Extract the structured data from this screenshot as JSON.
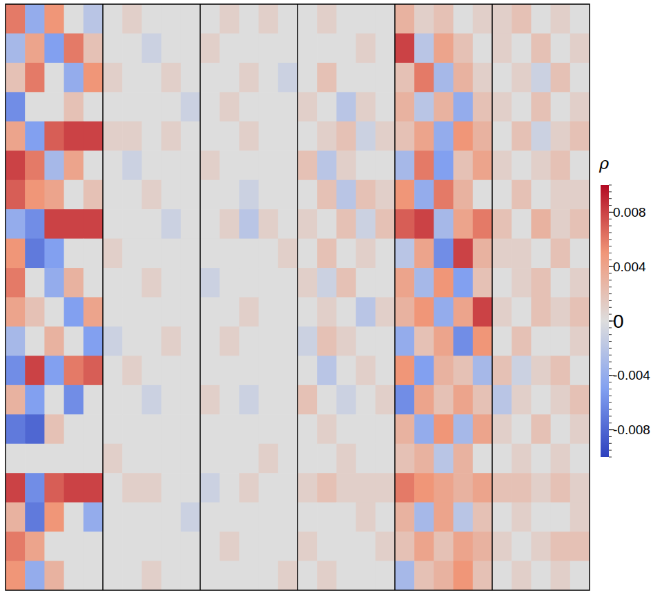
{
  "chart_data": {
    "type": "heatmap",
    "tick_labels": false,
    "colorbar": {
      "label": "ρ",
      "range": [
        -0.01,
        0.01
      ],
      "ticks": [
        -0.008,
        -0.004,
        0,
        0.004,
        0.008
      ]
    },
    "panels": [
      {
        "cells": [
          [
            0.006,
            -0.004,
            0.005,
            0,
            -0.002
          ],
          [
            -0.003,
            0.004,
            -0.005,
            0.006,
            0.002
          ],
          [
            0.002,
            0.006,
            0,
            -0.004,
            0.005
          ],
          [
            -0.006,
            0,
            0,
            0.002,
            0
          ],
          [
            0.004,
            -0.005,
            0.007,
            0.008,
            0.008
          ],
          [
            0.008,
            0.006,
            -0.003,
            0.004,
            0
          ],
          [
            0.007,
            0.005,
            0.004,
            0,
            0.002
          ],
          [
            -0.004,
            -0.006,
            0.008,
            0.008,
            0.008
          ],
          [
            0.005,
            -0.007,
            -0.005,
            0,
            0
          ],
          [
            0.006,
            0,
            -0.004,
            0.003,
            0
          ],
          [
            0.004,
            0.002,
            0,
            -0.005,
            0.004
          ],
          [
            -0.003,
            0,
            0.003,
            0,
            -0.005
          ],
          [
            -0.006,
            0.008,
            -0.005,
            0.006,
            0.007
          ],
          [
            0.003,
            -0.005,
            0,
            -0.006,
            0
          ],
          [
            -0.007,
            -0.008,
            0.002,
            0,
            0
          ],
          [
            0,
            0,
            0,
            0,
            0
          ],
          [
            0.008,
            -0.006,
            0.007,
            0.008,
            0.008
          ],
          [
            0.003,
            -0.007,
            0.005,
            0,
            -0.004
          ],
          [
            0.006,
            0.004,
            0,
            0,
            0
          ],
          [
            0.005,
            -0.004,
            0.003,
            0,
            0
          ]
        ]
      },
      {
        "cells": [
          [
            0,
            0.001,
            0,
            0,
            0
          ],
          [
            0,
            0,
            -0.001,
            0,
            0
          ],
          [
            0.001,
            0,
            0,
            0.001,
            0
          ],
          [
            0,
            0,
            0,
            0,
            -0.001
          ],
          [
            0.001,
            0.001,
            0,
            0.001,
            0
          ],
          [
            0,
            -0.001,
            0,
            0,
            0
          ],
          [
            0,
            0,
            0.001,
            0,
            0
          ],
          [
            0,
            0,
            0,
            -0.001,
            0
          ],
          [
            0.001,
            0,
            0,
            0,
            0
          ],
          [
            0,
            0,
            0.001,
            0,
            0
          ],
          [
            0,
            0,
            0,
            0,
            0
          ],
          [
            -0.001,
            0,
            0,
            0.001,
            0
          ],
          [
            0,
            0.001,
            0,
            0,
            0
          ],
          [
            0,
            0,
            -0.001,
            0,
            0
          ],
          [
            0,
            0,
            0,
            0,
            0
          ],
          [
            0.001,
            0,
            0,
            0,
            0
          ],
          [
            0,
            0.001,
            0.001,
            0,
            0
          ],
          [
            0,
            0,
            0,
            0,
            -0.001
          ],
          [
            0,
            0,
            0,
            0,
            0
          ],
          [
            0,
            0,
            0.001,
            0,
            0
          ]
        ]
      },
      {
        "cells": [
          [
            0,
            0.001,
            0,
            0.001,
            0
          ],
          [
            0.001,
            0,
            0,
            0,
            0
          ],
          [
            0,
            0,
            0.001,
            0,
            -0.001
          ],
          [
            0,
            0.001,
            0,
            0,
            0
          ],
          [
            0,
            0,
            0.001,
            0,
            0
          ],
          [
            0.001,
            0,
            0,
            0,
            0
          ],
          [
            0,
            0,
            -0.001,
            0,
            0
          ],
          [
            0,
            0.001,
            -0.002,
            0.001,
            0
          ],
          [
            0,
            0,
            0,
            0,
            0.001
          ],
          [
            -0.001,
            0,
            0,
            0,
            0
          ],
          [
            0,
            0,
            0.001,
            0,
            0
          ],
          [
            0,
            0.001,
            0,
            0,
            0
          ],
          [
            0,
            0,
            0,
            0,
            0
          ],
          [
            0.001,
            0,
            -0.001,
            0,
            0
          ],
          [
            0,
            0,
            0,
            0,
            0
          ],
          [
            0,
            0,
            0,
            0.001,
            0
          ],
          [
            -0.001,
            0,
            0.001,
            0,
            0
          ],
          [
            0,
            0,
            0,
            0,
            0
          ],
          [
            0,
            0.001,
            0,
            0,
            0
          ],
          [
            0,
            0,
            0,
            0,
            0.001
          ]
        ]
      },
      {
        "cells": [
          [
            0,
            0.001,
            0,
            0,
            0
          ],
          [
            0,
            0,
            0,
            0.001,
            0
          ],
          [
            0,
            0.002,
            0,
            0,
            0
          ],
          [
            0.001,
            0,
            -0.002,
            0.001,
            0
          ],
          [
            0,
            0.001,
            0.002,
            -0.001,
            0.001
          ],
          [
            0.002,
            -0.002,
            0.001,
            0,
            0
          ],
          [
            0,
            0.002,
            -0.002,
            0.002,
            0.001
          ],
          [
            0.001,
            0,
            0.002,
            -0.001,
            0.002
          ],
          [
            0,
            0.002,
            0,
            0.001,
            0
          ],
          [
            0.001,
            -0.001,
            0.002,
            0,
            0
          ],
          [
            0,
            0.001,
            0,
            -0.002,
            0.001
          ],
          [
            -0.001,
            0.002,
            0.001,
            0,
            0
          ],
          [
            0,
            -0.002,
            0,
            0.001,
            0
          ],
          [
            0.002,
            0,
            -0.001,
            0,
            0.001
          ],
          [
            0,
            0.001,
            0,
            0,
            0
          ],
          [
            0,
            0,
            0.001,
            0,
            0
          ],
          [
            0.001,
            0.002,
            0.001,
            0.001,
            0.001
          ],
          [
            0,
            0,
            0,
            0.001,
            0
          ],
          [
            0.001,
            0,
            0,
            0,
            0.001
          ],
          [
            0,
            0.001,
            0,
            0,
            0
          ]
        ]
      },
      {
        "cells": [
          [
            0.003,
            0.001,
            0.002,
            0,
            0.001
          ],
          [
            0.008,
            -0.002,
            0.004,
            0.002,
            0
          ],
          [
            0.002,
            0.006,
            -0.003,
            0.003,
            0.001
          ],
          [
            0.003,
            -0.002,
            0.003,
            -0.004,
            0.002
          ],
          [
            0.002,
            0.004,
            -0.004,
            0.005,
            0.003
          ],
          [
            -0.003,
            0.006,
            -0.005,
            0.002,
            0.004
          ],
          [
            0.005,
            -0.004,
            0.006,
            0.003,
            0
          ],
          [
            0.007,
            0.008,
            -0.003,
            0.004,
            0.006
          ],
          [
            -0.002,
            0.004,
            -0.006,
            0.008,
            0.003
          ],
          [
            0.004,
            -0.003,
            0.005,
            -0.005,
            0.002
          ],
          [
            0.003,
            0.005,
            -0.004,
            0.004,
            0.008
          ],
          [
            -0.004,
            0.002,
            0.004,
            -0.006,
            0.005
          ],
          [
            0.005,
            -0.005,
            0.003,
            0.002,
            -0.003
          ],
          [
            -0.006,
            0.004,
            0.002,
            0.004,
            0.002
          ],
          [
            0.003,
            -0.004,
            0.005,
            -0.003,
            0.004
          ],
          [
            0.002,
            0.003,
            -0.002,
            0.003,
            0
          ],
          [
            0.006,
            0.005,
            0.004,
            0.003,
            0.004
          ],
          [
            0.003,
            -0.003,
            0.004,
            -0.002,
            0.002
          ],
          [
            0.002,
            0.004,
            0.002,
            0.004,
            0.003
          ],
          [
            -0.003,
            0.002,
            0.003,
            0.005,
            0.002
          ]
        ]
      },
      {
        "cells": [
          [
            0.001,
            0.002,
            0,
            0.001,
            0
          ],
          [
            0.001,
            0,
            0.002,
            0,
            0.001
          ],
          [
            0,
            0.001,
            -0.001,
            0.002,
            0
          ],
          [
            0.001,
            0,
            0.002,
            0,
            0.001
          ],
          [
            0,
            0.002,
            -0.001,
            0.001,
            0.002
          ],
          [
            0.001,
            0,
            0.001,
            0.002,
            0
          ],
          [
            0,
            0.002,
            0,
            0.001,
            0.001
          ],
          [
            0.002,
            0,
            0.003,
            0.001,
            0.002
          ],
          [
            0.001,
            0.001,
            0,
            0.002,
            0
          ],
          [
            0,
            0.001,
            0.002,
            0,
            0.001
          ],
          [
            0.001,
            0,
            0.002,
            0.001,
            0.002
          ],
          [
            0,
            0.002,
            0,
            0,
            0.001
          ],
          [
            0.002,
            -0.001,
            0.001,
            0.002,
            0
          ],
          [
            -0.002,
            0.001,
            0,
            0.001,
            0.002
          ],
          [
            0.001,
            0,
            0.002,
            0,
            0.001
          ],
          [
            0,
            0.001,
            0,
            0.001,
            0
          ],
          [
            0.002,
            0.002,
            0.001,
            0.002,
            0.001
          ],
          [
            0,
            0.001,
            0,
            0,
            0.001
          ],
          [
            0.001,
            0,
            0.001,
            0.002,
            0.002
          ],
          [
            0,
            0.001,
            0,
            0.001,
            0
          ]
        ]
      }
    ]
  }
}
